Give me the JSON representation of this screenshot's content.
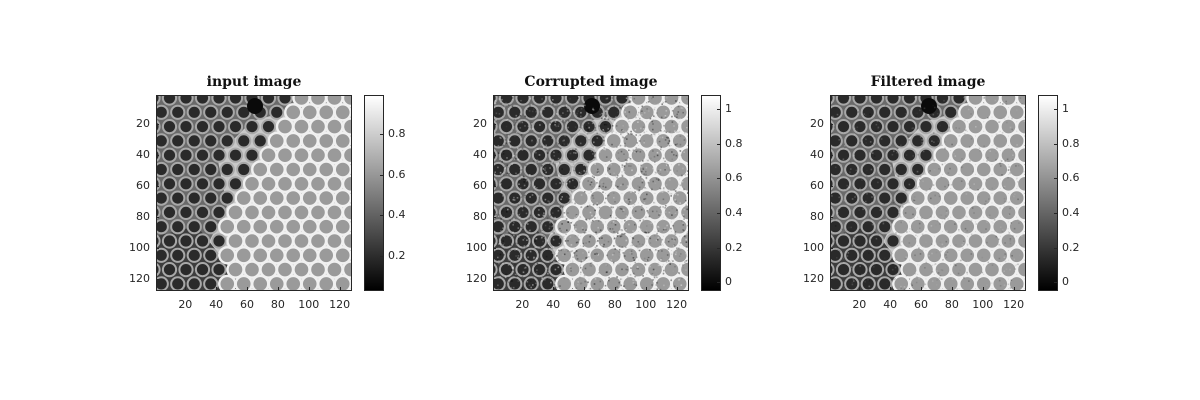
{
  "chart_data": [
    {
      "type": "heatmap",
      "title": "input image",
      "x_ticks": [
        20,
        40,
        60,
        80,
        100,
        120
      ],
      "y_ticks": [
        20,
        40,
        60,
        80,
        100,
        120
      ],
      "xlim": [
        1,
        128
      ],
      "ylim": [
        1,
        128
      ],
      "colormap": "gray",
      "colorbar": {
        "ticks": [
          0.2,
          0.4,
          0.6,
          0.8
        ],
        "range": [
          0.03,
          0.99
        ]
      },
      "grid": false
    },
    {
      "type": "heatmap",
      "title": "Corrupted image",
      "x_ticks": [
        20,
        40,
        60,
        80,
        100,
        120
      ],
      "y_ticks": [
        20,
        40,
        60,
        80,
        100,
        120
      ],
      "xlim": [
        1,
        128
      ],
      "ylim": [
        1,
        128
      ],
      "colormap": "gray",
      "colorbar": {
        "ticks": [
          0,
          0.2,
          0.4,
          0.6,
          0.8,
          1
        ],
        "range": [
          -0.05,
          1.08
        ]
      },
      "grid": false
    },
    {
      "type": "heatmap",
      "title": "Filtered image",
      "x_ticks": [
        20,
        40,
        60,
        80,
        100,
        120
      ],
      "y_ticks": [
        20,
        40,
        60,
        80,
        100,
        120
      ],
      "xlim": [
        1,
        128
      ],
      "ylim": [
        1,
        128
      ],
      "colormap": "gray",
      "colorbar": {
        "ticks": [
          0,
          0.2,
          0.4,
          0.6,
          0.8,
          1
        ],
        "range": [
          -0.05,
          1.08
        ]
      },
      "grid": false
    }
  ]
}
